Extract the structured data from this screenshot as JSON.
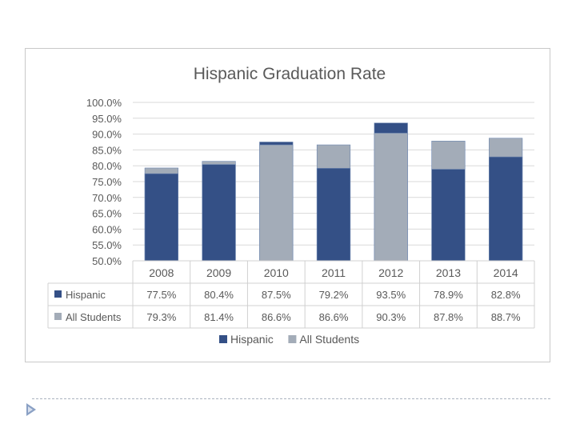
{
  "chart_data": {
    "type": "bar",
    "title": "Hispanic Graduation Rate",
    "categories": [
      "2008",
      "2009",
      "2010",
      "2011",
      "2012",
      "2013",
      "2014"
    ],
    "series": [
      {
        "name": "Hispanic",
        "values": [
          77.5,
          80.4,
          87.5,
          79.2,
          93.5,
          78.9,
          82.8
        ],
        "display": [
          "77.5%",
          "80.4%",
          "87.5%",
          "79.2%",
          "93.5%",
          "78.9%",
          "82.8%"
        ],
        "color": "#345086"
      },
      {
        "name": "All Students",
        "values": [
          79.3,
          81.4,
          86.6,
          86.6,
          90.3,
          87.8,
          88.7
        ],
        "display": [
          "79.3%",
          "81.4%",
          "86.6%",
          "86.6%",
          "90.3%",
          "87.8%",
          "88.7%"
        ],
        "color": "#a3acb8"
      }
    ],
    "ylim": [
      50,
      100
    ],
    "yticks": [
      "50.0%",
      "55.0%",
      "60.0%",
      "65.0%",
      "70.0%",
      "75.0%",
      "80.0%",
      "85.0%",
      "90.0%",
      "95.0%",
      "100.0%"
    ],
    "grid": true,
    "data_table": true,
    "legend_position": "bottom"
  },
  "colors": {
    "hispanic": "#345086",
    "all_students": "#a3acb8",
    "grid": "#d9d9d9",
    "text": "#595959"
  }
}
